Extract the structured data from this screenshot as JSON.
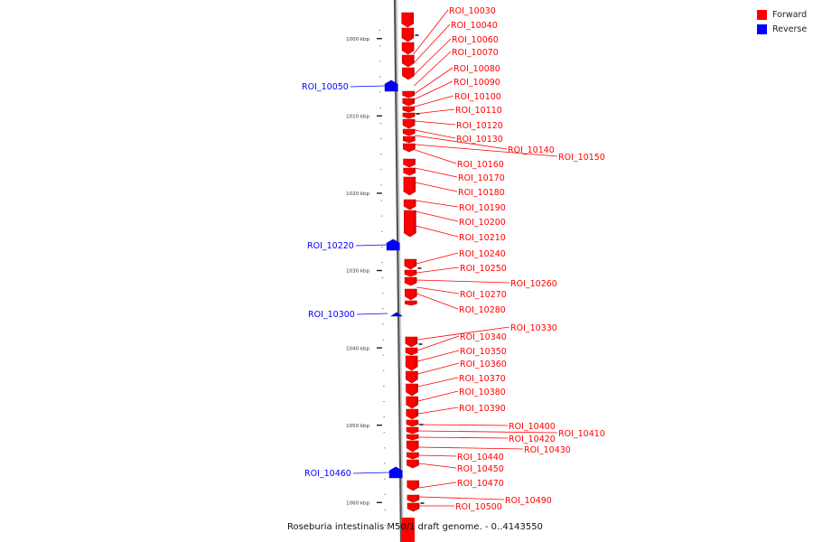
{
  "caption": "Roseburia intestinalis M50/1 draft genome. - 0..4143550",
  "colors": {
    "forward": "#ff0000",
    "reverse": "#0000ff",
    "forward_dark": "#b30000",
    "reverse_dark": "#0000a6",
    "axis": "#a8a8a8",
    "axis_dark": "#555555"
  },
  "legend": [
    {
      "label": "Forward",
      "color": "#ff0000"
    },
    {
      "label": "Reverse",
      "color": "#0000ff"
    }
  ],
  "scale_labels": [
    {
      "kbp": 1000,
      "label": "1000 kbp"
    },
    {
      "kbp": 1010,
      "label": "1010 kbp"
    },
    {
      "kbp": 1020,
      "label": "1020 kbp"
    },
    {
      "kbp": 1030,
      "label": "1030 kbp"
    },
    {
      "kbp": 1040,
      "label": "1040 kbp"
    },
    {
      "kbp": 1050,
      "label": "1050 kbp"
    },
    {
      "kbp": 1060,
      "label": "1060 kbp"
    }
  ],
  "features": [
    {
      "name": "ROI_10030",
      "strand": "forward"
    },
    {
      "name": "ROI_10040",
      "strand": "forward"
    },
    {
      "name": "ROI_10060",
      "strand": "forward"
    },
    {
      "name": "ROI_10070",
      "strand": "forward"
    },
    {
      "name": "ROI_10080",
      "strand": "forward"
    },
    {
      "name": "ROI_10090",
      "strand": "forward"
    },
    {
      "name": "ROI_10050",
      "strand": "reverse"
    },
    {
      "name": "ROI_10100",
      "strand": "forward"
    },
    {
      "name": "ROI_10110",
      "strand": "forward"
    },
    {
      "name": "ROI_10120",
      "strand": "forward"
    },
    {
      "name": "ROI_10130",
      "strand": "forward"
    },
    {
      "name": "ROI_10140",
      "strand": "forward"
    },
    {
      "name": "ROI_10150",
      "strand": "forward"
    },
    {
      "name": "ROI_10160",
      "strand": "forward"
    },
    {
      "name": "ROI_10170",
      "strand": "forward"
    },
    {
      "name": "ROI_10180",
      "strand": "forward"
    },
    {
      "name": "ROI_10190",
      "strand": "forward"
    },
    {
      "name": "ROI_10200",
      "strand": "forward"
    },
    {
      "name": "ROI_10210",
      "strand": "forward"
    },
    {
      "name": "ROI_10220",
      "strand": "reverse"
    },
    {
      "name": "ROI_10240",
      "strand": "forward"
    },
    {
      "name": "ROI_10250",
      "strand": "forward"
    },
    {
      "name": "ROI_10260",
      "strand": "forward"
    },
    {
      "name": "ROI_10270",
      "strand": "forward"
    },
    {
      "name": "ROI_10280",
      "strand": "forward"
    },
    {
      "name": "ROI_10300",
      "strand": "reverse"
    },
    {
      "name": "ROI_10330",
      "strand": "forward"
    },
    {
      "name": "ROI_10340",
      "strand": "forward"
    },
    {
      "name": "ROI_10350",
      "strand": "forward"
    },
    {
      "name": "ROI_10360",
      "strand": "forward"
    },
    {
      "name": "ROI_10370",
      "strand": "forward"
    },
    {
      "name": "ROI_10380",
      "strand": "forward"
    },
    {
      "name": "ROI_10390",
      "strand": "forward"
    },
    {
      "name": "ROI_10400",
      "strand": "forward"
    },
    {
      "name": "ROI_10410",
      "strand": "forward"
    },
    {
      "name": "ROI_10420",
      "strand": "forward"
    },
    {
      "name": "ROI_10430",
      "strand": "forward"
    },
    {
      "name": "ROI_10440",
      "strand": "forward"
    },
    {
      "name": "ROI_10450",
      "strand": "forward"
    },
    {
      "name": "ROI_10460",
      "strand": "reverse"
    },
    {
      "name": "ROI_10470",
      "strand": "forward"
    },
    {
      "name": "ROI_10490",
      "strand": "forward"
    },
    {
      "name": "ROI_10500",
      "strand": "forward"
    }
  ]
}
